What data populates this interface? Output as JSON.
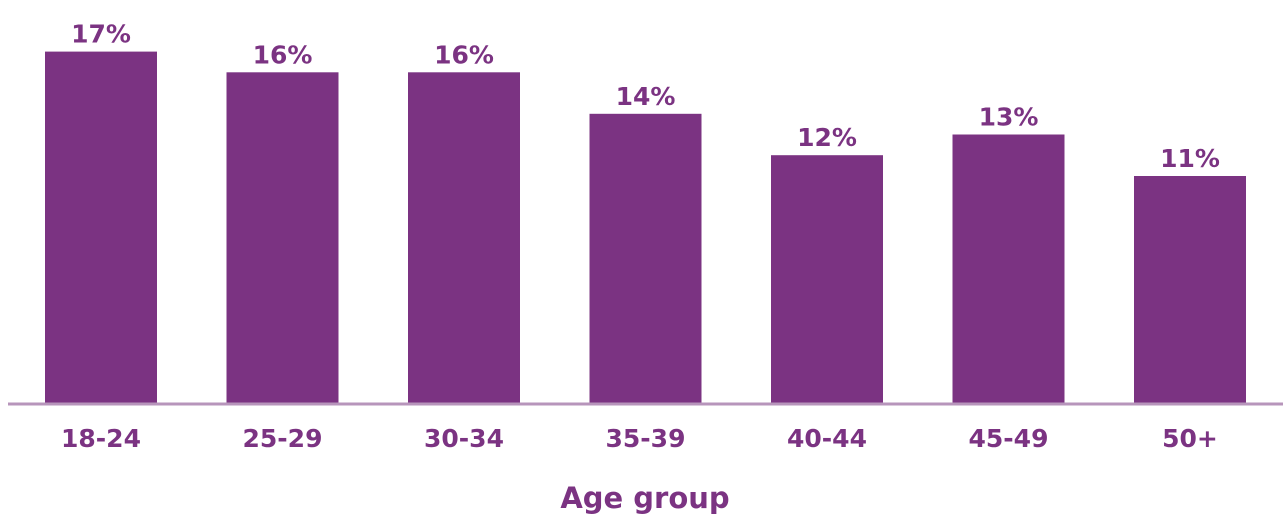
{
  "chart_data": {
    "type": "bar",
    "categories": [
      "18-24",
      "25-29",
      "30-34",
      "35-39",
      "40-44",
      "45-49",
      "50+"
    ],
    "values": [
      17,
      16,
      16,
      14,
      12,
      13,
      11
    ],
    "value_labels": [
      "17%",
      "16%",
      "16%",
      "14%",
      "12%",
      "13%",
      "11%"
    ],
    "title": "",
    "xlabel": "Age group",
    "ylabel": "",
    "ylim": [
      0,
      17.8
    ],
    "grid": false,
    "legend": "none",
    "colors": {
      "bar": "#7b3382",
      "text": "#7b3382",
      "axis": "#b795bb"
    }
  }
}
